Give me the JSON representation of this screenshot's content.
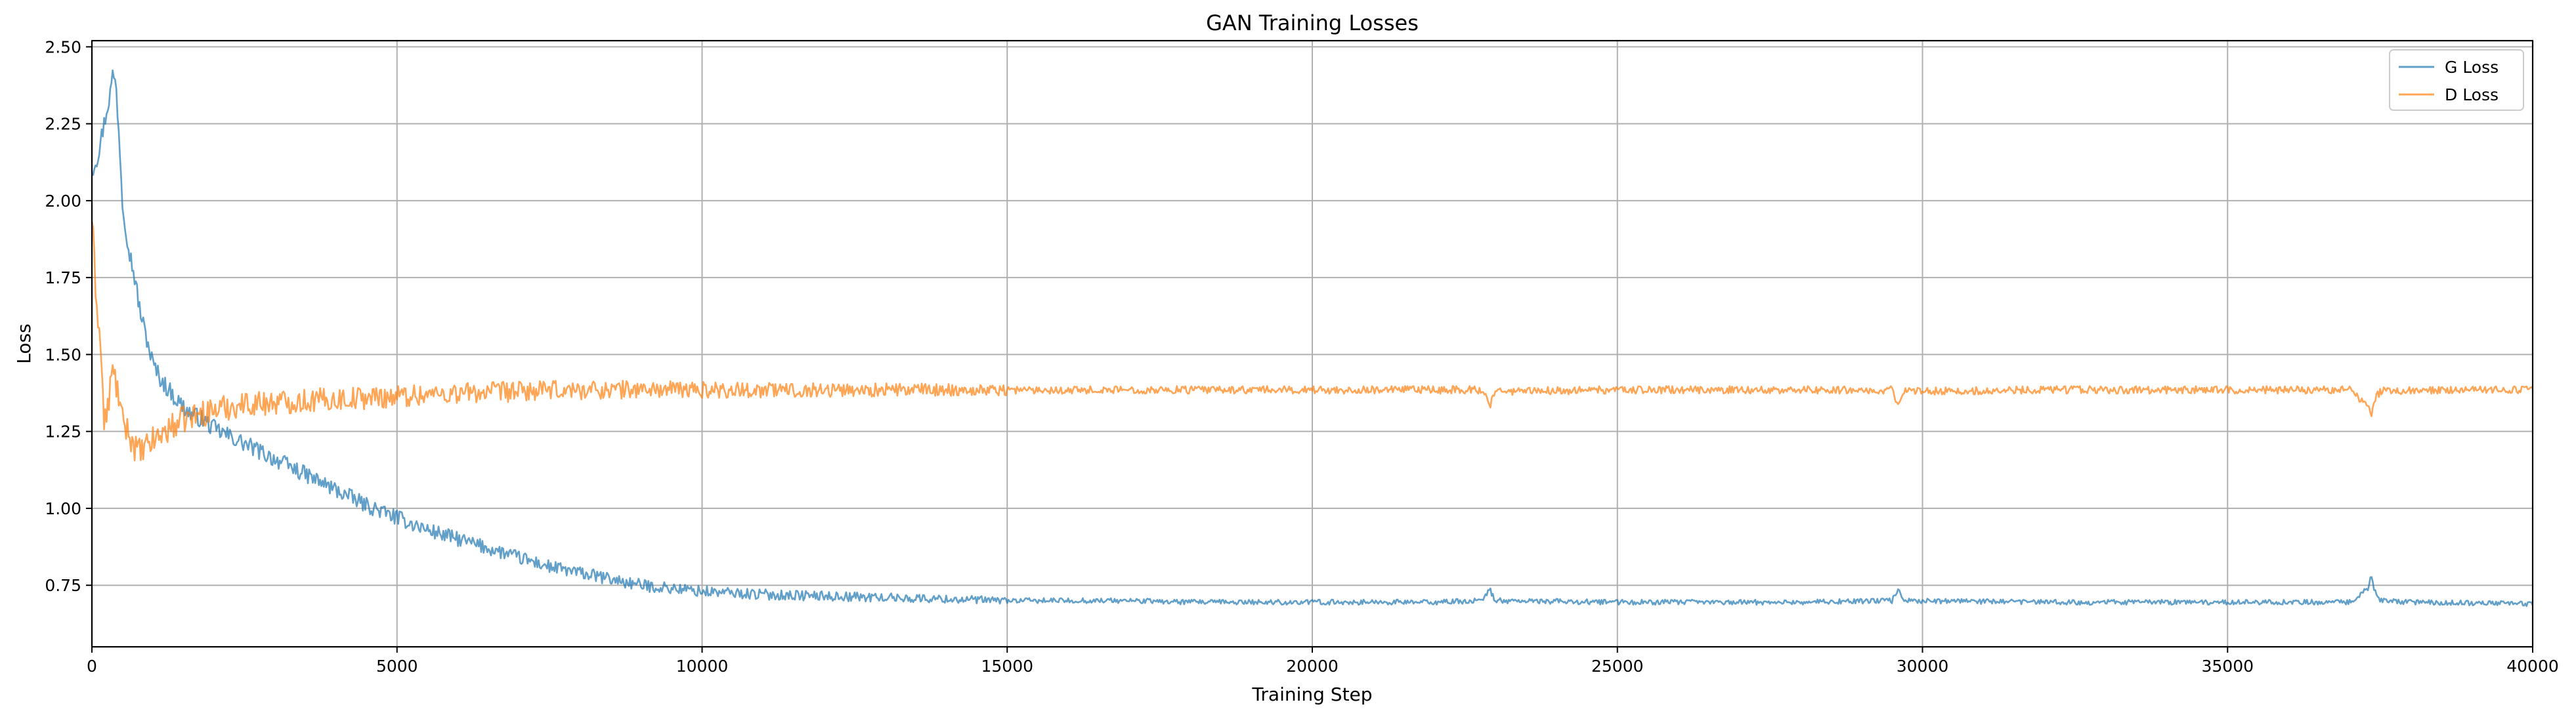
{
  "chart_data": {
    "type": "line",
    "title": "GAN Training Losses",
    "xlabel": "Training Step",
    "ylabel": "Loss",
    "xlim": [
      0,
      40000
    ],
    "ylim": [
      0.55,
      2.52
    ],
    "xticks": [
      0,
      5000,
      10000,
      15000,
      20000,
      25000,
      30000,
      35000,
      40000
    ],
    "yticks": [
      0.75,
      1.0,
      1.25,
      1.5,
      1.75,
      2.0,
      2.25,
      2.5
    ],
    "xtick_labels": [
      "0",
      "5000",
      "10000",
      "15000",
      "20000",
      "25000",
      "30000",
      "35000",
      "40000"
    ],
    "ytick_labels": [
      "0.75",
      "1.00",
      "1.25",
      "1.50",
      "1.75",
      "2.00",
      "2.25",
      "2.50"
    ],
    "grid": true,
    "legend_position": "top-right",
    "series": [
      {
        "name": "G Loss",
        "color": "#1f77b4",
        "opacity": 0.7,
        "noise": 0.012,
        "x": [
          0,
          100,
          200,
          300,
          350,
          400,
          450,
          500,
          600,
          700,
          800,
          900,
          1000,
          1100,
          1200,
          1400,
          1600,
          1800,
          2000,
          2500,
          3000,
          3500,
          4000,
          4500,
          5000,
          5500,
          6000,
          6500,
          7000,
          7500,
          8000,
          8500,
          9000,
          9500,
          10000,
          11000,
          12000,
          13000,
          14000,
          15000,
          16000,
          17000,
          18000,
          20000,
          22000,
          22800,
          22900,
          23000,
          25000,
          28000,
          29500,
          29600,
          29700,
          32000,
          35000,
          37000,
          37300,
          37350,
          37400,
          37500,
          38000,
          40000
        ],
        "y": [
          2.1,
          2.15,
          2.25,
          2.35,
          2.42,
          2.36,
          2.2,
          2.0,
          1.85,
          1.75,
          1.63,
          1.55,
          1.47,
          1.43,
          1.4,
          1.35,
          1.31,
          1.29,
          1.26,
          1.21,
          1.16,
          1.11,
          1.06,
          1.01,
          0.97,
          0.93,
          0.9,
          0.87,
          0.84,
          0.81,
          0.79,
          0.77,
          0.75,
          0.74,
          0.73,
          0.72,
          0.715,
          0.71,
          0.705,
          0.7,
          0.7,
          0.7,
          0.695,
          0.695,
          0.695,
          0.7,
          0.74,
          0.7,
          0.695,
          0.695,
          0.7,
          0.74,
          0.7,
          0.695,
          0.695,
          0.695,
          0.74,
          0.79,
          0.74,
          0.7,
          0.695,
          0.69
        ]
      },
      {
        "name": "D Loss",
        "color": "#ff7f0e",
        "opacity": 0.7,
        "noise": 0.018,
        "x": [
          0,
          50,
          150,
          200,
          250,
          300,
          350,
          450,
          500,
          600,
          700,
          800,
          900,
          1000,
          1200,
          1500,
          2000,
          2500,
          3000,
          3500,
          4000,
          5000,
          6000,
          7000,
          8000,
          9000,
          10000,
          11000,
          12000,
          13000,
          14000,
          15000,
          17000,
          20000,
          22800,
          22900,
          23000,
          25000,
          29500,
          29600,
          29700,
          32000,
          35000,
          37000,
          37300,
          37350,
          37400,
          37500,
          38000,
          40000
        ],
        "y": [
          1.95,
          1.75,
          1.5,
          1.28,
          1.3,
          1.4,
          1.45,
          1.35,
          1.28,
          1.25,
          1.2,
          1.18,
          1.2,
          1.22,
          1.25,
          1.29,
          1.32,
          1.34,
          1.345,
          1.35,
          1.355,
          1.365,
          1.375,
          1.38,
          1.385,
          1.387,
          1.385,
          1.385,
          1.385,
          1.385,
          1.385,
          1.385,
          1.385,
          1.385,
          1.385,
          1.33,
          1.38,
          1.385,
          1.385,
          1.33,
          1.38,
          1.385,
          1.385,
          1.385,
          1.33,
          1.3,
          1.35,
          1.38,
          1.385,
          1.385
        ]
      }
    ]
  }
}
